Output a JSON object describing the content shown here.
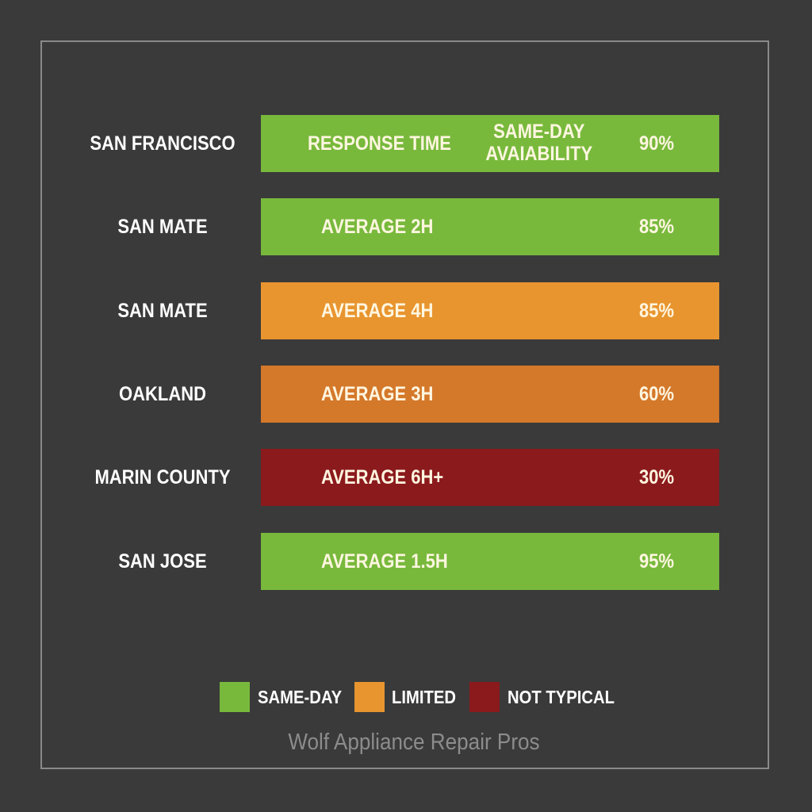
{
  "rows": [
    {
      "city": "SAN FRANCISCO",
      "response": "RESPONSE TIME",
      "note": "SAME-DAY AVAIABILITY",
      "percent": "90%",
      "color": "#78b93c"
    },
    {
      "city": "SAN MATE",
      "response": "AVERAGE 2H",
      "percent": "85%",
      "color": "#78b93c"
    },
    {
      "city": "SAN MATE",
      "response": "AVERAGE 4H",
      "percent": "85%",
      "color": "#e8952f"
    },
    {
      "city": "OAKLAND",
      "response": "AVERAGE 3H",
      "percent": "60%",
      "color": "#d4782a"
    },
    {
      "city": "MARIN COUNTY",
      "response": "AVERAGE 6H+",
      "percent": "30%",
      "color": "#8b1a1d"
    },
    {
      "city": "SAN JOSE",
      "response": "AVERAGE 1.5H",
      "percent": "95%",
      "color": "#78b93c"
    }
  ],
  "legend": [
    {
      "label": "SAME-DAY",
      "color": "#78b93c"
    },
    {
      "label": "LIMITED",
      "color": "#e8952f"
    },
    {
      "label": "NOT TYPICAL",
      "color": "#8b1a1d"
    }
  ],
  "footer": "Wolf Appliance Repair Pros"
}
